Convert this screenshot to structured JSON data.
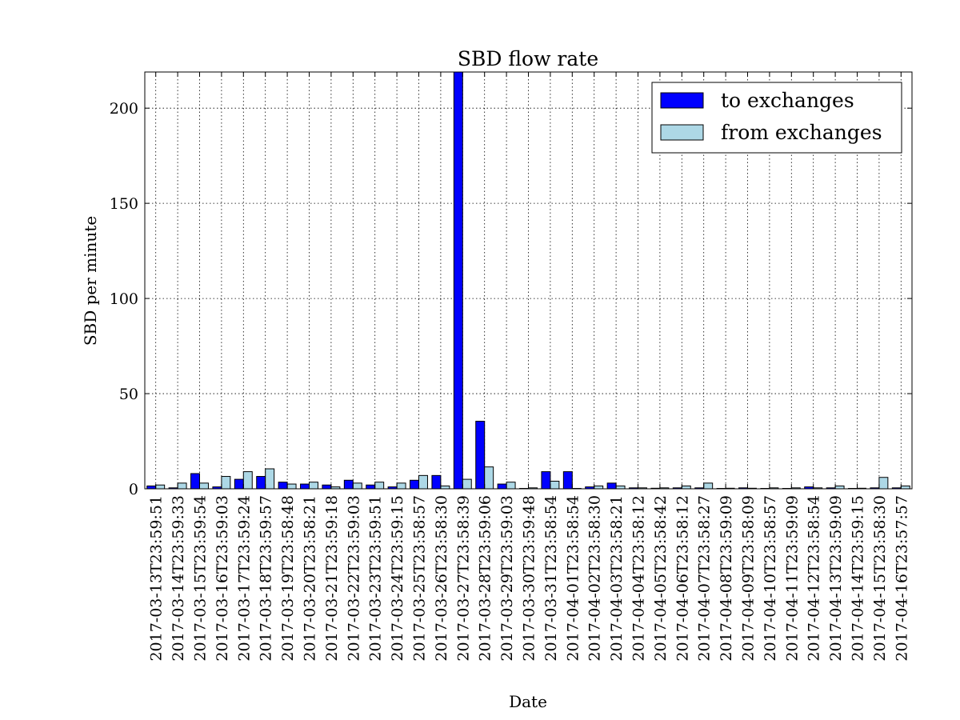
{
  "chart_data": {
    "type": "bar",
    "title": "SBD flow rate",
    "xlabel": "Date",
    "ylabel": "SBD per minute",
    "ylim": [
      0,
      219
    ],
    "yticks": [
      0,
      50,
      100,
      150,
      200
    ],
    "grid": true,
    "legend_position": "top-right",
    "categories": [
      "2017-03-13T23:59:51",
      "2017-03-14T23:59:33",
      "2017-03-15T23:59:54",
      "2017-03-16T23:59:03",
      "2017-03-17T23:59:24",
      "2017-03-18T23:59:57",
      "2017-03-19T23:58:48",
      "2017-03-20T23:58:21",
      "2017-03-21T23:59:18",
      "2017-03-22T23:59:03",
      "2017-03-23T23:59:51",
      "2017-03-24T23:59:15",
      "2017-03-25T23:58:57",
      "2017-03-26T23:58:30",
      "2017-03-27T23:58:39",
      "2017-03-28T23:59:06",
      "2017-03-29T23:59:03",
      "2017-03-30T23:59:48",
      "2017-03-31T23:58:54",
      "2017-04-01T23:58:54",
      "2017-04-02T23:58:30",
      "2017-04-03T23:58:21",
      "2017-04-04T23:58:12",
      "2017-04-05T23:58:42",
      "2017-04-06T23:58:12",
      "2017-04-07T23:58:27",
      "2017-04-08T23:59:09",
      "2017-04-09T23:58:09",
      "2017-04-10T23:58:57",
      "2017-04-11T23:59:09",
      "2017-04-12T23:58:54",
      "2017-04-13T23:59:09",
      "2017-04-14T23:59:15",
      "2017-04-15T23:58:30",
      "2017-04-16T23:57:57"
    ],
    "series": [
      {
        "name": "to exchanges",
        "color": "#0000ff",
        "values": [
          1.5,
          0.5,
          8.0,
          1.0,
          5.0,
          6.5,
          3.5,
          2.5,
          2.0,
          4.5,
          2.0,
          1.0,
          4.5,
          7.0,
          220.0,
          35.5,
          2.5,
          0.2,
          9.0,
          9.0,
          1.0,
          3.0,
          0.5,
          0.3,
          0.5,
          0.5,
          0.2,
          0.5,
          0.2,
          0.2,
          1.0,
          0.5,
          0.2,
          0.5,
          0.5
        ]
      },
      {
        "name": "from exchanges",
        "color": "#add8e6",
        "values": [
          2.0,
          3.0,
          3.0,
          6.5,
          9.0,
          10.5,
          2.5,
          3.5,
          1.0,
          3.0,
          3.5,
          3.0,
          7.0,
          1.5,
          5.0,
          11.5,
          3.5,
          0.5,
          4.0,
          0.2,
          1.5,
          1.5,
          0.5,
          0.5,
          1.5,
          3.0,
          0.3,
          0.3,
          0.5,
          0.5,
          0.5,
          1.5,
          0.3,
          6.0,
          1.5
        ]
      }
    ]
  }
}
